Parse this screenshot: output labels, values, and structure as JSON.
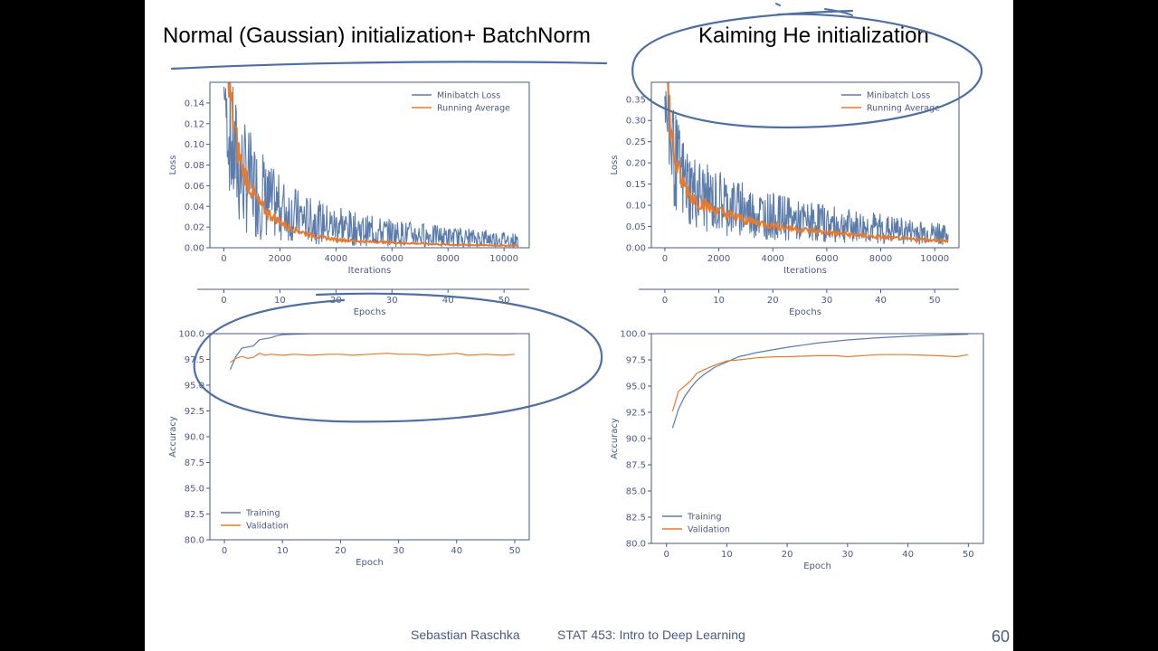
{
  "slide": {
    "left_title": "Normal (Gaussian) initialization+ BatchNorm",
    "right_title": "Kaiming He initialization",
    "footer_author": "Sebastian Raschka",
    "footer_course": "STAT 453: Intro to Deep Learning",
    "page_number": "60"
  },
  "colors": {
    "minibatch": "#5b7bab",
    "running": "#e67a2e",
    "axis": "#4a5a80",
    "annotation": "#4d6fa3"
  },
  "chart_data": [
    {
      "id": "left-loss",
      "type": "line",
      "xlabel": "Iterations",
      "ylabel": "Loss",
      "xlim": [
        -500,
        10900
      ],
      "ylim": [
        0,
        0.16
      ],
      "xticks": [
        0,
        2000,
        4000,
        6000,
        8000,
        10000
      ],
      "yticks": [
        0.0,
        0.02,
        0.04,
        0.06,
        0.08,
        0.1,
        0.12,
        0.14
      ],
      "ytick_labels": [
        "0.00",
        "0.02",
        "0.04",
        "0.06",
        "0.08",
        "0.10",
        "0.12",
        "0.14"
      ],
      "secondary_xlabel": "Epochs",
      "secondary_xticks": [
        0,
        10,
        20,
        30,
        40,
        50
      ],
      "legend": "top-right",
      "series": [
        {
          "name": "Minibatch Loss",
          "x": [
            0,
            100,
            200,
            300,
            400,
            500,
            600,
            800,
            1000,
            1200,
            1500,
            2000,
            2500,
            3000,
            3500,
            4000,
            5000,
            6000,
            7000,
            8000,
            9000,
            10000,
            10500
          ],
          "y_low": [
            0.15,
            0.09,
            0.05,
            0.03,
            0.022,
            0.018,
            0.015,
            0.012,
            0.01,
            0.008,
            0.007,
            0.006,
            0.005,
            0.004,
            0.003,
            0.002,
            0.0015,
            0.001,
            0.0008,
            0.0006,
            0.0005,
            0.0004,
            0.0004
          ],
          "y_high": [
            0.16,
            0.16,
            0.16,
            0.16,
            0.15,
            0.14,
            0.13,
            0.12,
            0.11,
            0.1,
            0.085,
            0.07,
            0.06,
            0.05,
            0.045,
            0.04,
            0.032,
            0.028,
            0.024,
            0.02,
            0.018,
            0.016,
            0.014
          ]
        },
        {
          "name": "Running Average",
          "x": [
            150,
            250,
            350,
            400,
            500,
            600,
            700,
            800,
            1000,
            1200,
            1500,
            2000,
            2500,
            3000,
            3500,
            4000,
            5000,
            6000,
            7000,
            8000,
            9000,
            10000,
            10500
          ],
          "y": [
            0.155,
            0.14,
            0.12,
            0.11,
            0.095,
            0.085,
            0.075,
            0.068,
            0.055,
            0.045,
            0.035,
            0.025,
            0.018,
            0.013,
            0.01,
            0.008,
            0.006,
            0.005,
            0.004,
            0.003,
            0.0025,
            0.002,
            0.002
          ]
        }
      ]
    },
    {
      "id": "right-loss",
      "type": "line",
      "xlabel": "Iterations",
      "ylabel": "Loss",
      "xlim": [
        -500,
        10900
      ],
      "ylim": [
        0,
        0.39
      ],
      "xticks": [
        0,
        2000,
        4000,
        6000,
        8000,
        10000
      ],
      "yticks": [
        0.0,
        0.05,
        0.1,
        0.15,
        0.2,
        0.25,
        0.3,
        0.35
      ],
      "ytick_labels": [
        "0.00",
        "0.05",
        "0.10",
        "0.15",
        "0.20",
        "0.25",
        "0.30",
        "0.35"
      ],
      "secondary_xlabel": "Epochs",
      "secondary_xticks": [
        0,
        10,
        20,
        30,
        40,
        50
      ],
      "legend": "top-right",
      "series": [
        {
          "name": "Minibatch Loss",
          "x": [
            0,
            100,
            200,
            300,
            400,
            600,
            800,
            1000,
            1500,
            2000,
            3000,
            4000,
            5000,
            6000,
            7000,
            8000,
            9000,
            10000,
            10500
          ],
          "y_low": [
            0.3,
            0.2,
            0.14,
            0.1,
            0.08,
            0.06,
            0.05,
            0.045,
            0.035,
            0.03,
            0.022,
            0.018,
            0.014,
            0.012,
            0.01,
            0.008,
            0.007,
            0.006,
            0.005
          ],
          "y_high": [
            0.39,
            0.39,
            0.39,
            0.35,
            0.32,
            0.28,
            0.25,
            0.23,
            0.2,
            0.18,
            0.15,
            0.13,
            0.11,
            0.1,
            0.09,
            0.08,
            0.07,
            0.06,
            0.05
          ]
        },
        {
          "name": "Running Average",
          "x": [
            100,
            200,
            300,
            400,
            600,
            800,
            1000,
            1500,
            2000,
            3000,
            4000,
            5000,
            6000,
            7000,
            8000,
            9000,
            10000,
            10500
          ],
          "y": [
            0.38,
            0.3,
            0.24,
            0.2,
            0.16,
            0.14,
            0.12,
            0.1,
            0.085,
            0.065,
            0.052,
            0.043,
            0.036,
            0.03,
            0.025,
            0.021,
            0.018,
            0.016
          ]
        }
      ]
    },
    {
      "id": "left-acc",
      "type": "line",
      "xlabel": "Epoch",
      "ylabel": "Accuracy",
      "xlim": [
        -2.5,
        52.5
      ],
      "ylim": [
        80,
        100
      ],
      "xticks": [
        0,
        10,
        20,
        30,
        40,
        50
      ],
      "yticks": [
        80,
        82.5,
        85,
        87.5,
        90,
        92.5,
        95,
        97.5,
        100
      ],
      "ytick_labels": [
        "80.0",
        "82.5",
        "85.0",
        "87.5",
        "90.0",
        "92.5",
        "95.0",
        "97.5",
        "100.0"
      ],
      "legend": "lower-left",
      "series": [
        {
          "name": "Training",
          "x": [
            1,
            2,
            3,
            4,
            5,
            6,
            7,
            8,
            9,
            10,
            12,
            15,
            20,
            25,
            30,
            35,
            40,
            45,
            50
          ],
          "y": [
            96.5,
            97.8,
            98.6,
            98.7,
            98.8,
            99.4,
            99.5,
            99.6,
            99.8,
            99.9,
            99.95,
            100,
            100,
            100,
            100,
            100,
            100,
            100,
            100
          ]
        },
        {
          "name": "Validation",
          "x": [
            1,
            2,
            3,
            4,
            5,
            6,
            7,
            8,
            10,
            12,
            15,
            18,
            20,
            22,
            25,
            28,
            30,
            33,
            35,
            38,
            40,
            42,
            45,
            48,
            50
          ],
          "y": [
            97.2,
            97.6,
            97.8,
            97.6,
            97.7,
            98.1,
            97.9,
            98.0,
            97.9,
            98.0,
            97.9,
            98.0,
            98.0,
            97.9,
            98.0,
            98.1,
            98.0,
            98.0,
            97.9,
            98.0,
            98.1,
            97.9,
            98.0,
            97.9,
            98.0
          ]
        }
      ]
    },
    {
      "id": "right-acc",
      "type": "line",
      "xlabel": "Epoch",
      "ylabel": "Accuracy",
      "xlim": [
        -2.5,
        52.5
      ],
      "ylim": [
        80,
        100
      ],
      "xticks": [
        0,
        10,
        20,
        30,
        40,
        50
      ],
      "yticks": [
        80,
        82.5,
        85,
        87.5,
        90,
        92.5,
        95,
        97.5,
        100
      ],
      "ytick_labels": [
        "80.0",
        "82.5",
        "85.0",
        "87.5",
        "90.0",
        "92.5",
        "95.0",
        "97.5",
        "100.0"
      ],
      "legend": "lower-left",
      "series": [
        {
          "name": "Training",
          "x": [
            1,
            2,
            3,
            4,
            5,
            6,
            8,
            10,
            12,
            15,
            20,
            25,
            30,
            35,
            40,
            45,
            50
          ],
          "y": [
            91.0,
            92.8,
            94.0,
            94.8,
            95.5,
            96.0,
            96.8,
            97.3,
            97.8,
            98.2,
            98.7,
            99.1,
            99.4,
            99.6,
            99.75,
            99.85,
            99.95
          ]
        },
        {
          "name": "Validation",
          "x": [
            1,
            2,
            3,
            4,
            5,
            6,
            8,
            10,
            12,
            15,
            18,
            20,
            25,
            28,
            30,
            35,
            40,
            45,
            48,
            50
          ],
          "y": [
            92.6,
            94.5,
            95.0,
            95.5,
            96.2,
            96.5,
            97.0,
            97.4,
            97.5,
            97.7,
            97.8,
            97.8,
            97.9,
            97.9,
            97.8,
            98.0,
            98.0,
            97.9,
            97.8,
            98.0
          ]
        }
      ]
    }
  ]
}
